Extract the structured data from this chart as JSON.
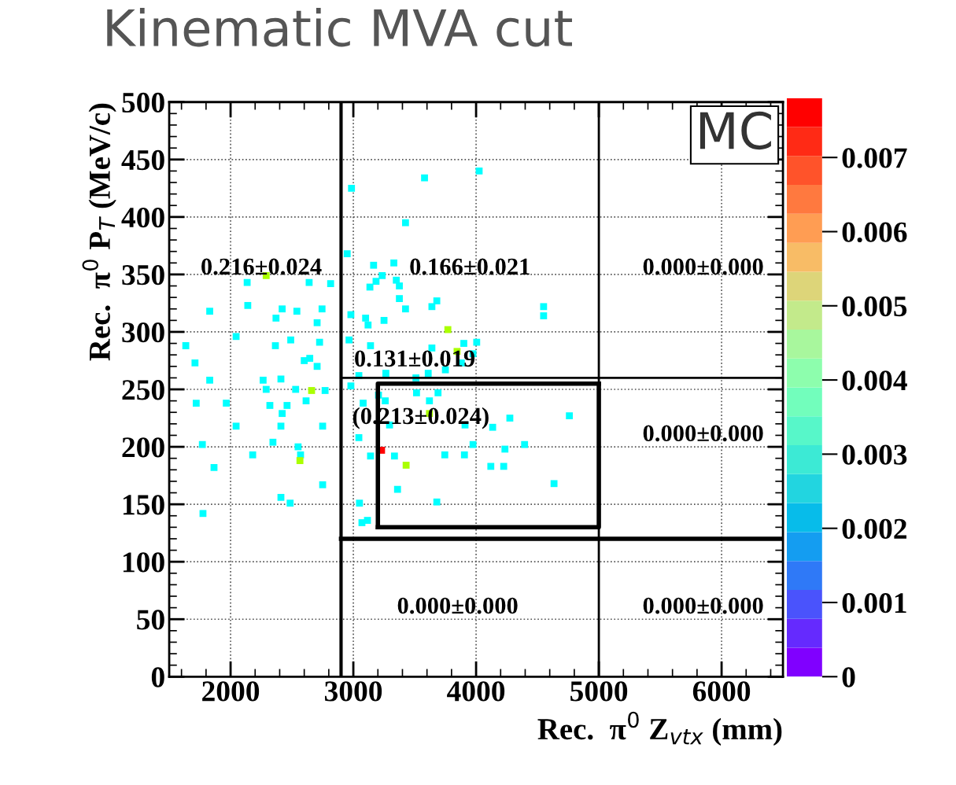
{
  "chart_data": {
    "type": "scatter",
    "title": "Kinematic MVA cut",
    "xlabel": "Rec.  π$^{0}$ Z$_{vtx}$ (mm)",
    "ylabel": "Rec.  π$^{0}$ P$_{T}$ (MeV/c)",
    "xlim": [
      1500,
      6500
    ],
    "xticks": [
      2000,
      3000,
      4000,
      5000,
      6000
    ],
    "ylim": [
      0,
      500
    ],
    "yticks": [
      0,
      50,
      100,
      150,
      200,
      250,
      300,
      350,
      400,
      450,
      500
    ],
    "grid": true,
    "clim": [
      0,
      0.0078
    ],
    "cticks": [
      0,
      0.001,
      0.002,
      0.003,
      0.004,
      0.005,
      0.006,
      0.007
    ],
    "series": [
      {
        "marker": "square",
        "x": [
          2290,
          2135,
          2640,
          2815,
          1830,
          2140,
          2420,
          2540,
          2745,
          2370,
          2705,
          1635,
          2365,
          2725,
          2045,
          2490,
          1710,
          2600,
          2645,
          2705,
          1830,
          2265,
          2410,
          2290,
          2530,
          2660,
          2770,
          1720,
          1965,
          2320,
          2615,
          2460,
          2420,
          2045,
          2410,
          2750,
          1770,
          2345,
          2550,
          2180,
          2570,
          2565,
          1865,
          2750,
          2410,
          2485,
          1775,
          2985,
          3580,
          4025,
          3425,
          2950,
          3165,
          3330,
          3235,
          3185,
          3350,
          3135,
          3375,
          3375,
          3680,
          3425,
          2980,
          3100,
          3250,
          3640,
          3770,
          2965,
          3120,
          4550,
          4550,
          3640,
          3900,
          4005,
          3140,
          3845,
          3975,
          3880,
          3750,
          3610,
          3045,
          3265,
          3510,
          2980,
          3205,
          3515,
          3620,
          3690,
          3260,
          3080,
          3295,
          3910,
          4135,
          4760,
          4275,
          3620,
          3045,
          3745,
          3905,
          3975,
          4395,
          4235,
          3140,
          3230,
          3335,
          3430,
          4120,
          4225,
          3360,
          3680,
          4635,
          3050,
          3070,
          3115
        ],
        "values": [
          349,
          343,
          343,
          342,
          318,
          323,
          320,
          318,
          320,
          312,
          308,
          288,
          288,
          291,
          296,
          293,
          273,
          275,
          277,
          270,
          258,
          258,
          259,
          250,
          250,
          249,
          249,
          238,
          238,
          236,
          240,
          236,
          229,
          218,
          218,
          218,
          202,
          204,
          200,
          193,
          193,
          188,
          182,
          167,
          156,
          151,
          142,
          425,
          434,
          440,
          395,
          368,
          358,
          360,
          349,
          344,
          345,
          339,
          340,
          329,
          327,
          320,
          315,
          312,
          310,
          322,
          302,
          293,
          306,
          322,
          314,
          286,
          290,
          291,
          288,
          283,
          281,
          273,
          267,
          264,
          262,
          264,
          260,
          253,
          245,
          247,
          240,
          247,
          240,
          238,
          219,
          219,
          217,
          227,
          225,
          229,
          208,
          193,
          193,
          202,
          202,
          198,
          192,
          197,
          192,
          184,
          183,
          183,
          163,
          152,
          168,
          151,
          134,
          136
        ],
        "colors": [
          "#aaff00",
          "#00ffff",
          "#00ffff",
          "#00ffff",
          "#00ffff",
          "#00ffff",
          "#00ffff",
          "#00ffff",
          "#00ffff",
          "#00ffff",
          "#00ffff",
          "#00ffff",
          "#00ffff",
          "#00ffff",
          "#00ffff",
          "#00ffff",
          "#00ffff",
          "#00ffff",
          "#00ffff",
          "#00ffff",
          "#00ffff",
          "#00ffff",
          "#00ffff",
          "#00ffff",
          "#00ffff",
          "#aaff00",
          "#00ffff",
          "#00ffff",
          "#00ffff",
          "#00ffff",
          "#00ffff",
          "#00ffff",
          "#00ffff",
          "#00ffff",
          "#00ffff",
          "#00ffff",
          "#00ffff",
          "#00ffff",
          "#00ffff",
          "#00ffff",
          "#00ffff",
          "#aaff00",
          "#00ffff",
          "#00ffff",
          "#00ffff",
          "#00ffff",
          "#00ffff",
          "#00ffff",
          "#00ffff",
          "#00ffff",
          "#00ffff",
          "#00ffff",
          "#00ffff",
          "#00ffff",
          "#00ffff",
          "#00ffff",
          "#00ffff",
          "#00ffff",
          "#00ffff",
          "#00ffff",
          "#00ffff",
          "#00ffff",
          "#00ffff",
          "#00ffff",
          "#00ffff",
          "#00ffff",
          "#aaff00",
          "#00ffff",
          "#00ffff",
          "#00ffff",
          "#00ffff",
          "#00ffff",
          "#00ffff",
          "#00ffff",
          "#00ffff",
          "#aaff00",
          "#00ffff",
          "#00ffff",
          "#00ffff",
          "#00ffff",
          "#00ffff",
          "#00ffff",
          "#00ffff",
          "#00ffff",
          "#00ffff",
          "#00ffff",
          "#00ffff",
          "#00ffff",
          "#00ffff",
          "#00ffff",
          "#00ffff",
          "#00ffff",
          "#00ffff",
          "#00ffff",
          "#00ffff",
          "#aaff00",
          "#00ffff",
          "#00ffff",
          "#00ffff",
          "#00ffff",
          "#00ffff",
          "#00ffff",
          "#00ffff",
          "#ff0000",
          "#00ffff",
          "#aaff00",
          "#00ffff",
          "#00ffff",
          "#00ffff",
          "#00ffff",
          "#00ffff",
          "#00ffff",
          "#00ffff",
          "#00ffff"
        ]
      },
      {
        "type": "line",
        "color": "#000000",
        "x": [
          3200,
          5000,
          5000
        ],
        "values": [
          130,
          130,
          255
        ]
      },
      {
        "type": "line",
        "color": "#000000",
        "x": [
          5000,
          3200,
          3200
        ],
        "values": [
          255,
          255,
          130
        ]
      },
      {
        "type": "line",
        "color": "#000000",
        "x": [
          2900,
          6500
        ],
        "values": [
          260,
          260
        ]
      },
      {
        "type": "line",
        "color": "#000000",
        "x": [
          2900,
          6500
        ],
        "values": [
          120,
          120
        ]
      }
    ],
    "ref_lines": [
      {
        "axis": "x",
        "value": 2900,
        "color": "#000000"
      },
      {
        "axis": "x",
        "value": 5000,
        "color": "#000000"
      }
    ],
    "annotations": [
      "0.216±0.024",
      "0.166±0.021",
      "0.000±0.000",
      "0.131±0.019",
      "(0.213±0.024)",
      "0.000±0.000",
      "0.000±0.000",
      "0.000±0.000",
      "MC"
    ]
  }
}
